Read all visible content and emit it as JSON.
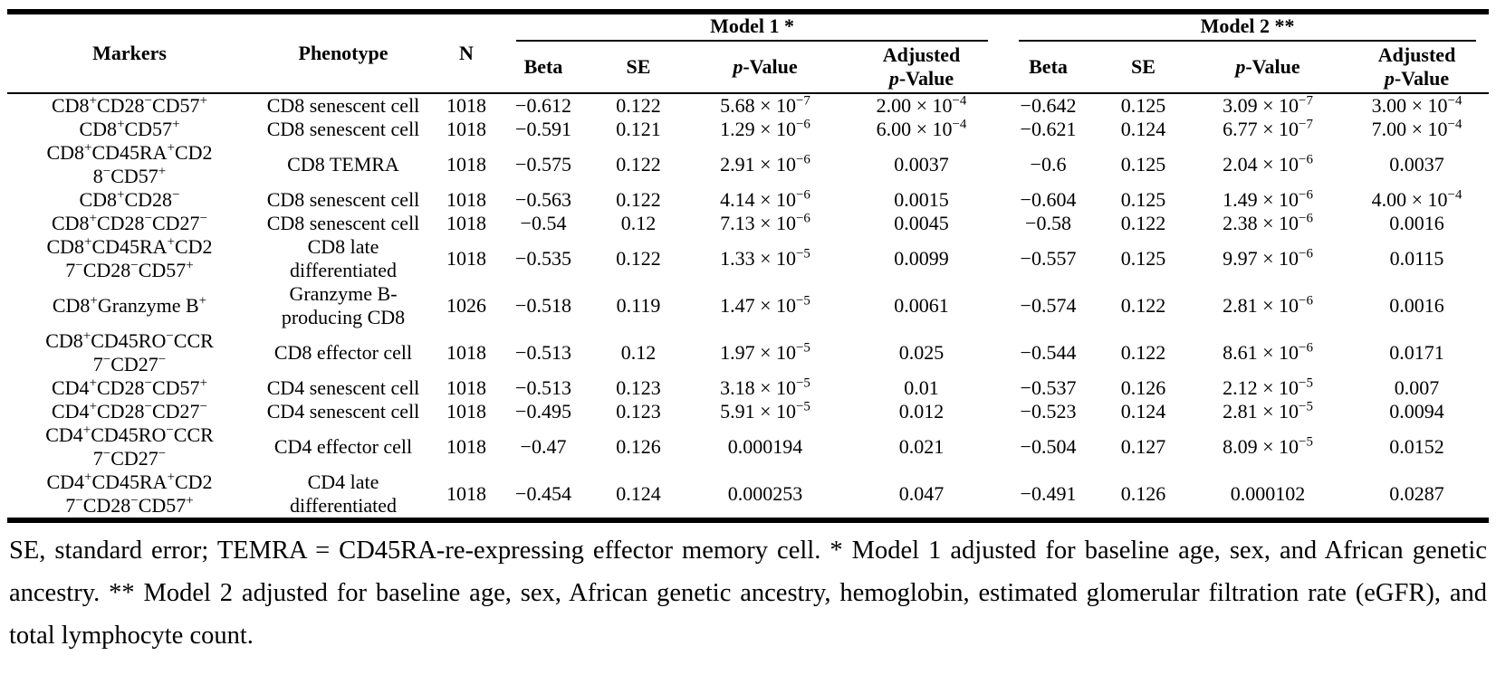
{
  "table": {
    "headers": {
      "markers": "Markers",
      "phenotype": "Phenotype",
      "n": "N",
      "model1": "Model 1 *",
      "model2": "Model 2 **",
      "beta": "Beta",
      "se": "SE",
      "p_value": "//p//-Value",
      "adjusted_p_value": "Adjusted\n//p//-Value"
    },
    "rows": [
      {
        "markers": "CD8^{+}CD28^{−}CD57^{+}",
        "phenotype": "CD8 senescent cell",
        "n": "1018",
        "model1": [
          "−0.612",
          "0.122",
          "5.68 × 10^{−7}",
          "2.00 × 10^{−4}"
        ],
        "model2": [
          "−0.642",
          "0.125",
          "3.09 × 10^{−7}",
          "3.00 × 10^{−4}"
        ]
      },
      {
        "markers": "CD8^{+}CD57^{+}",
        "phenotype": "CD8 senescent cell",
        "n": "1018",
        "model1": [
          "−0.591",
          "0.121",
          "1.29 × 10^{−6}",
          "6.00 × 10^{−4}"
        ],
        "model2": [
          "−0.621",
          "0.124",
          "6.77 × 10^{−7}",
          "7.00 × 10^{−4}"
        ]
      },
      {
        "markers": "CD8^{+}CD45RA^{+}CD2\n8^{−}CD57^{+}",
        "phenotype": "CD8 TEMRA",
        "n": "1018",
        "model1": [
          "−0.575",
          "0.122",
          "2.91 × 10^{−6}",
          "0.0037"
        ],
        "model2": [
          "−0.6",
          "0.125",
          "2.04 × 10^{−6}",
          "0.0037"
        ]
      },
      {
        "markers": "CD8^{+}CD28^{−}",
        "phenotype": "CD8 senescent cell",
        "n": "1018",
        "model1": [
          "−0.563",
          "0.122",
          "4.14 × 10^{−6}",
          "0.0015"
        ],
        "model2": [
          "−0.604",
          "0.125",
          "1.49 × 10^{−6}",
          "4.00 × 10^{−4}"
        ]
      },
      {
        "markers": "CD8^{+}CD28^{−}CD27^{−}",
        "phenotype": "CD8 senescent cell",
        "n": "1018",
        "model1": [
          "−0.54",
          "0.12",
          "7.13 × 10^{−6}",
          "0.0045"
        ],
        "model2": [
          "−0.58",
          "0.122",
          "2.38 × 10^{−6}",
          "0.0016"
        ]
      },
      {
        "markers": "CD8^{+}CD45RA^{+}CD2\n7^{−}CD28^{−}CD57^{+}",
        "phenotype": "CD8 late\ndifferentiated",
        "n": "1018",
        "model1": [
          "−0.535",
          "0.122",
          "1.33 × 10^{−5}",
          "0.0099"
        ],
        "model2": [
          "−0.557",
          "0.125",
          "9.97 × 10^{−6}",
          "0.0115"
        ]
      },
      {
        "markers": "CD8^{+}Granzyme B^{+}",
        "phenotype": "Granzyme B-\nproducing CD8",
        "n": "1026",
        "model1": [
          "−0.518",
          "0.119",
          "1.47 × 10^{−5}",
          "0.0061"
        ],
        "model2": [
          "−0.574",
          "0.122",
          "2.81 × 10^{−6}",
          "0.0016"
        ]
      },
      {
        "markers": "CD8^{+}CD45RO^{−}CCR\n7^{−}CD27^{−}",
        "phenotype": "CD8 effector cell",
        "n": "1018",
        "model1": [
          "−0.513",
          "0.12",
          "1.97 × 10^{−5}",
          "0.025"
        ],
        "model2": [
          "−0.544",
          "0.122",
          "8.61 × 10^{−6}",
          "0.0171"
        ]
      },
      {
        "markers": "CD4^{+}CD28^{−}CD57^{+}",
        "phenotype": "CD4 senescent cell",
        "n": "1018",
        "model1": [
          "−0.513",
          "0.123",
          "3.18 × 10^{−5}",
          "0.01"
        ],
        "model2": [
          "−0.537",
          "0.126",
          "2.12 × 10^{−5}",
          "0.007"
        ]
      },
      {
        "markers": "CD4^{+}CD28^{−}CD27^{−}",
        "phenotype": "CD4 senescent cell",
        "n": "1018",
        "model1": [
          "−0.495",
          "0.123",
          "5.91 × 10^{−5}",
          "0.012"
        ],
        "model2": [
          "−0.523",
          "0.124",
          "2.81 × 10^{−5}",
          "0.0094"
        ]
      },
      {
        "markers": "CD4^{+}CD45RO^{−}CCR\n7^{−}CD27^{−}",
        "phenotype": "CD4 effector cell",
        "n": "1018",
        "model1": [
          "−0.47",
          "0.126",
          "0.000194",
          "0.021"
        ],
        "model2": [
          "−0.504",
          "0.127",
          "8.09 × 10^{−5}",
          "0.0152"
        ]
      },
      {
        "markers": "CD4^{+}CD45RA^{+}CD2\n7^{−}CD28^{−}CD57^{+}",
        "phenotype": "CD4 late\ndifferentiated",
        "n": "1018",
        "model1": [
          "−0.454",
          "0.124",
          "0.000253",
          "0.047"
        ],
        "model2": [
          "−0.491",
          "0.126",
          "0.000102",
          "0.0287"
        ]
      }
    ]
  },
  "footnote": "SE, standard error; TEMRA = CD45RA-re-expressing effector memory cell. * Model 1 adjusted for baseline age, sex, and African genetic ancestry. ** Model 2 adjusted for baseline age, sex, African genetic ancestry, hemoglobin, estimated glomerular filtration rate (eGFR), and total lymphocyte count."
}
